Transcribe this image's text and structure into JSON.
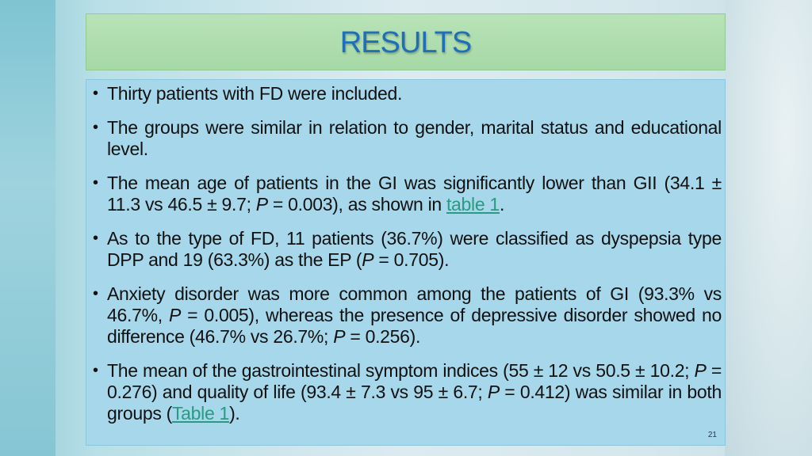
{
  "slide": {
    "title": "RESULTS",
    "page_number": "21",
    "bullets": [
      {
        "text": "Thirty patients with FD were included."
      },
      {
        "text": "The groups were similar in relation to gender, marital status and educational level."
      },
      {
        "a": "The mean age of patients in the GI was significantly lower than GII (34.1 ± 11.3 vs 46.5 ± 9.7; ",
        "p": "P",
        "b": " = 0.003), as shown in ",
        "link": "table 1",
        "c": "."
      },
      {
        "a": "As to the type of FD, 11 patients (36.7%) were classified as dyspepsia type DPP and 19 (63.3%) as the EP (",
        "p": "P",
        "b": " = 0.705)."
      },
      {
        "a": "Anxiety disorder was more common among the patients of GI (93.3% vs 46.7%, ",
        "p1": "P",
        "b": " = 0.005), whereas the presence of depressive disorder showed no difference (46.7% vs 26.7%; ",
        "p2": "P",
        "c": " = 0.256)."
      },
      {
        "a": "The mean of the gastrointestinal symptom indices (55 ± 12 vs 50.5 ± 10.2; ",
        "p1": "P",
        "b": " = 0.276) and quality of life (93.4 ± 7.3 vs 95 ± 6.7; ",
        "p2": "P",
        "c": " = 0.412) was similar in both groups (",
        "link": "Table 1",
        "d": ")."
      }
    ],
    "bullet_glyph": "•"
  }
}
